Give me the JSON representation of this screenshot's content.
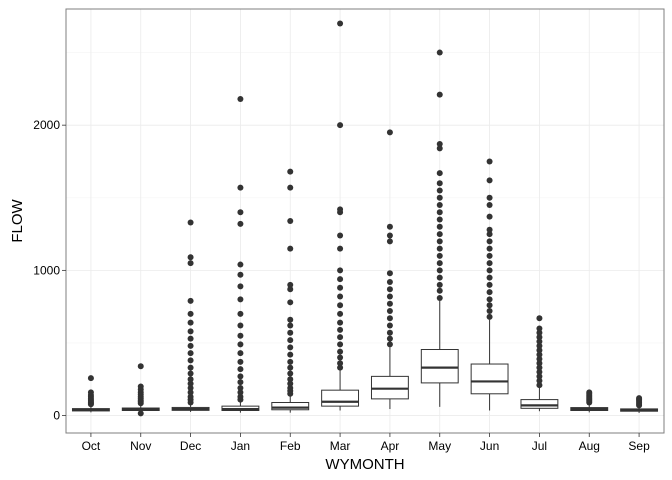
{
  "chart_data": {
    "type": "boxplot",
    "xlabel": "WYMONTH",
    "ylabel": "FLOW",
    "ylim": [
      -120,
      2800
    ],
    "yticks": [
      0,
      1000,
      2000
    ],
    "grid": true,
    "colors": {
      "box_fill": "#ffffff",
      "box_line": "#333333",
      "outlier": "#333333",
      "grid": "#ebebeb",
      "panel_border": "#7f7f7f"
    },
    "categories": [
      "Oct",
      "Nov",
      "Dec",
      "Jan",
      "Feb",
      "Mar",
      "Apr",
      "May",
      "Jun",
      "Jul",
      "Aug",
      "Sep"
    ],
    "boxes": [
      {
        "month": "Oct",
        "min": 22,
        "q1": 32,
        "median": 40,
        "q3": 48,
        "max": 70,
        "outliers": [
          78,
          85,
          92,
          100,
          108,
          118,
          130,
          142,
          160,
          258
        ]
      },
      {
        "month": "Nov",
        "min": 25,
        "q1": 35,
        "median": 43,
        "q3": 52,
        "max": 78,
        "outliers": [
          15,
          85,
          95,
          105,
          118,
          130,
          145,
          160,
          180,
          200,
          340
        ]
      },
      {
        "month": "Dec",
        "min": 25,
        "q1": 36,
        "median": 45,
        "q3": 56,
        "max": 80,
        "outliers": [
          90,
          110,
          130,
          160,
          190,
          220,
          250,
          290,
          330,
          380,
          430,
          480,
          530,
          580,
          640,
          700,
          790,
          1050,
          1090,
          1330
        ]
      },
      {
        "month": "Jan",
        "min": 20,
        "q1": 35,
        "median": 45,
        "q3": 65,
        "max": 100,
        "outliers": [
          110,
          130,
          160,
          190,
          230,
          270,
          320,
          370,
          430,
          490,
          550,
          620,
          700,
          800,
          890,
          970,
          1040,
          1320,
          1400,
          1570,
          2180
        ]
      },
      {
        "month": "Feb",
        "min": 20,
        "q1": 40,
        "median": 55,
        "q3": 90,
        "max": 140,
        "outliers": [
          150,
          170,
          190,
          220,
          250,
          290,
          330,
          370,
          420,
          470,
          520,
          570,
          620,
          660,
          780,
          870,
          900,
          1150,
          1340,
          1570,
          1680
        ]
      },
      {
        "month": "Mar",
        "min": 35,
        "q1": 65,
        "median": 95,
        "q3": 175,
        "max": 320,
        "outliers": [
          330,
          360,
          400,
          440,
          490,
          540,
          590,
          640,
          700,
          760,
          820,
          880,
          940,
          1000,
          1150,
          1240,
          1400,
          1420,
          2000,
          2700
        ]
      },
      {
        "month": "Apr",
        "min": 45,
        "q1": 115,
        "median": 185,
        "q3": 270,
        "max": 470,
        "outliers": [
          490,
          530,
          570,
          620,
          670,
          720,
          770,
          820,
          870,
          920,
          980,
          1200,
          1240,
          1300,
          1950
        ]
      },
      {
        "month": "May",
        "min": 60,
        "q1": 225,
        "median": 330,
        "q3": 455,
        "max": 790,
        "outliers": [
          810,
          860,
          900,
          950,
          1000,
          1050,
          1100,
          1150,
          1200,
          1250,
          1300,
          1350,
          1400,
          1450,
          1500,
          1550,
          1600,
          1670,
          1840,
          1870,
          2210,
          2500
        ]
      },
      {
        "month": "Jun",
        "min": 35,
        "q1": 150,
        "median": 235,
        "q3": 355,
        "max": 660,
        "outliers": [
          680,
          720,
          760,
          800,
          850,
          900,
          950,
          1000,
          1050,
          1100,
          1150,
          1200,
          1250,
          1280,
          1370,
          1450,
          1500,
          1620,
          1750
        ]
      },
      {
        "month": "Jul",
        "min": 30,
        "q1": 50,
        "median": 70,
        "q3": 110,
        "max": 200,
        "outliers": [
          210,
          240,
          270,
          300,
          330,
          360,
          390,
          420,
          450,
          480,
          510,
          540,
          570,
          600,
          670
        ]
      },
      {
        "month": "Aug",
        "min": 22,
        "q1": 35,
        "median": 45,
        "q3": 55,
        "max": 85,
        "outliers": [
          90,
          100,
          110,
          120,
          130,
          140,
          150,
          160
        ]
      },
      {
        "month": "Sep",
        "min": 18,
        "q1": 30,
        "median": 38,
        "q3": 46,
        "max": 65,
        "outliers": [
          70,
          80,
          90,
          100,
          110,
          120
        ]
      }
    ]
  }
}
